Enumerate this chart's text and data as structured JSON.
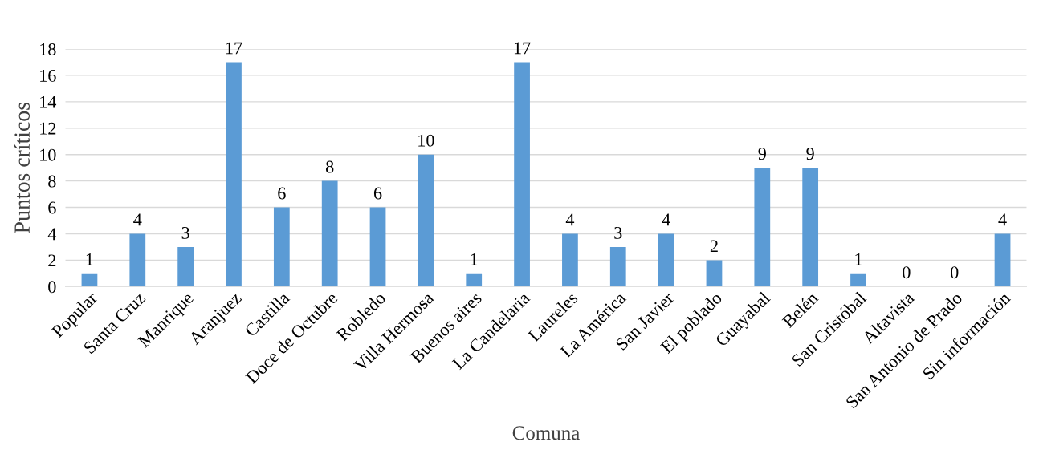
{
  "chart_data": {
    "type": "bar",
    "xlabel": "Comuna",
    "ylabel": "Puntos críticos",
    "categories": [
      "Popular",
      "Santa Cruz",
      "Manrique",
      "Aranjuez",
      "Castilla",
      "Doce de Octubre",
      "Robledo",
      "Villa Hermosa",
      "Buenos aires",
      "La Candelaria",
      "Laureles",
      "La América",
      "San Javier",
      "El poblado",
      "Guayabal",
      "Belén",
      "San Cristóbal",
      "Altavista",
      "San Antonio de Prado",
      "Sin información"
    ],
    "values": [
      1,
      4,
      3,
      17,
      6,
      8,
      6,
      10,
      1,
      17,
      4,
      3,
      4,
      2,
      9,
      9,
      1,
      0,
      0,
      4
    ],
    "color": "#5b9bd5",
    "ylim": [
      0,
      18
    ],
    "yticks": [
      0,
      2,
      4,
      6,
      8,
      10,
      12,
      14,
      16,
      18
    ],
    "grid": "y",
    "data_labels": true
  }
}
